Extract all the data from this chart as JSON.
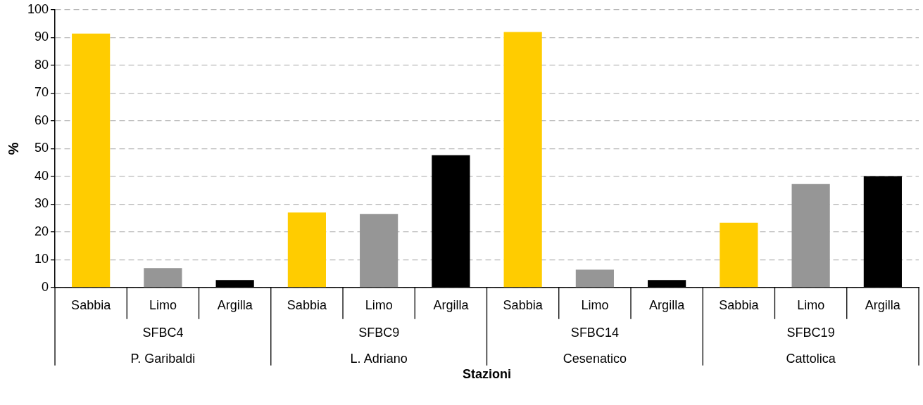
{
  "chart_data": {
    "type": "bar",
    "ylabel": "%",
    "xlabel": "Stazioni",
    "categories": [
      "Sabbia",
      "Limo",
      "Argilla",
      "Sabbia",
      "Limo",
      "Argilla",
      "Sabbia",
      "Limo",
      "Argilla",
      "Sabbia",
      "Limo",
      "Argilla"
    ],
    "values": [
      91.4,
      7,
      2.7,
      27,
      26.5,
      47.6,
      92,
      6.4,
      2.7,
      23.3,
      37.2,
      40.1
    ],
    "colors": [
      "#ffcc00",
      "#969696",
      "#000000",
      "#ffcc00",
      "#969696",
      "#000000",
      "#ffcc00",
      "#969696",
      "#000000",
      "#ffcc00",
      "#969696",
      "#000000"
    ],
    "ylim": [
      0,
      100
    ],
    "yticks": [
      0,
      10,
      20,
      30,
      40,
      50,
      60,
      70,
      80,
      90,
      100
    ],
    "grid": "y",
    "legend": false,
    "annotations": [
      "SFBC4",
      "SFBC9",
      "SFBC14",
      "SFBC19",
      "P. Garibaldi",
      "L. Adriano",
      "Cesenatico",
      "Cattolica"
    ]
  }
}
